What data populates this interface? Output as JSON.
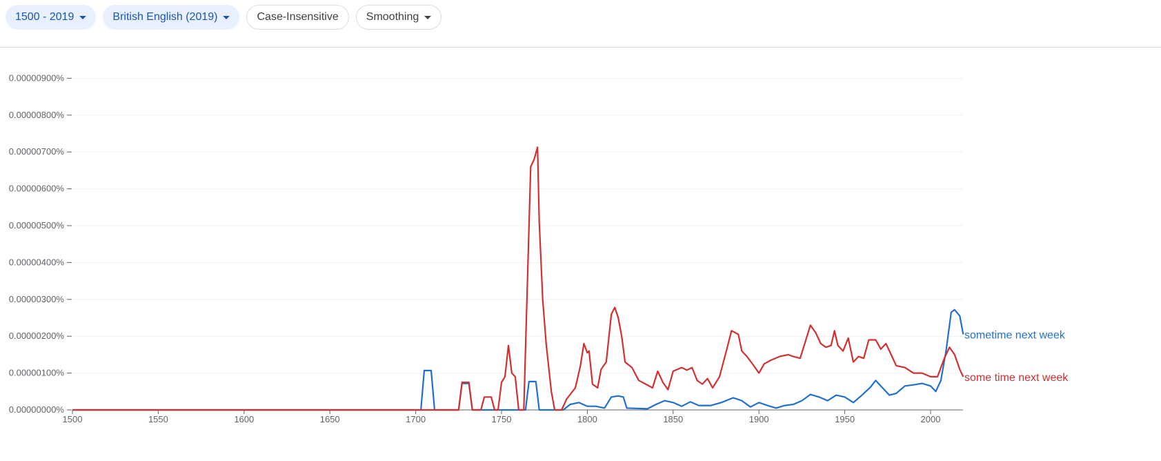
{
  "toolbar": {
    "year_range": "1500 - 2019",
    "corpus": "British English (2019)",
    "case": "Case-Insensitive",
    "smoothing": "Smoothing"
  },
  "chart_data": {
    "type": "line",
    "xlim": [
      1500,
      2019
    ],
    "ylim": [
      0,
      9.5e-06
    ],
    "grid": true,
    "x_ticks": [
      "1500",
      "1550",
      "1600",
      "1650",
      "1700",
      "1750",
      "1800",
      "1850",
      "1900",
      "1950",
      "2000"
    ],
    "y_ticks": [
      "0.00000000%",
      "0.00000100%",
      "0.00000200%",
      "0.00000300%",
      "0.00000400%",
      "0.00000500%",
      "0.00000600%",
      "0.00000700%",
      "0.00000800%",
      "0.00000900%"
    ],
    "y_unit": "percent",
    "series": [
      {
        "name": "sometime next week",
        "color": "#1f6fce",
        "points": [
          [
            1500,
            0
          ],
          [
            1703,
            0
          ],
          [
            1705,
            1.07e-06
          ],
          [
            1709,
            1.07e-06
          ],
          [
            1711,
            0
          ],
          [
            1725,
            0
          ],
          [
            1727,
            7.2e-07
          ],
          [
            1731,
            7.2e-07
          ],
          [
            1733,
            0
          ],
          [
            1764,
            0
          ],
          [
            1766,
            7.7e-07
          ],
          [
            1770,
            7.7e-07
          ],
          [
            1772,
            0
          ],
          [
            1786,
            0
          ],
          [
            1790,
            1.5e-07
          ],
          [
            1795,
            2e-07
          ],
          [
            1800,
            1e-07
          ],
          [
            1805,
            1e-07
          ],
          [
            1810,
            5e-08
          ],
          [
            1814,
            3.5e-07
          ],
          [
            1818,
            3.8e-07
          ],
          [
            1821,
            3.5e-07
          ],
          [
            1823,
            5e-08
          ],
          [
            1835,
            3e-08
          ],
          [
            1840,
            1.5e-07
          ],
          [
            1845,
            2.5e-07
          ],
          [
            1850,
            2e-07
          ],
          [
            1855,
            1e-07
          ],
          [
            1860,
            2.2e-07
          ],
          [
            1865,
            1.2e-07
          ],
          [
            1872,
            1.2e-07
          ],
          [
            1878,
            2e-07
          ],
          [
            1885,
            3.3e-07
          ],
          [
            1890,
            2.5e-07
          ],
          [
            1895,
            8e-08
          ],
          [
            1900,
            2e-07
          ],
          [
            1905,
            1.2e-07
          ],
          [
            1910,
            5e-08
          ],
          [
            1915,
            1.2e-07
          ],
          [
            1920,
            1.5e-07
          ],
          [
            1925,
            2.5e-07
          ],
          [
            1930,
            4.2e-07
          ],
          [
            1935,
            3.5e-07
          ],
          [
            1940,
            2.5e-07
          ],
          [
            1945,
            4e-07
          ],
          [
            1950,
            3.5e-07
          ],
          [
            1955,
            2e-07
          ],
          [
            1960,
            4e-07
          ],
          [
            1965,
            6.2e-07
          ],
          [
            1968,
            8e-07
          ],
          [
            1972,
            6e-07
          ],
          [
            1976,
            4e-07
          ],
          [
            1980,
            4.5e-07
          ],
          [
            1985,
            6.5e-07
          ],
          [
            1990,
            6.8e-07
          ],
          [
            1995,
            7.2e-07
          ],
          [
            2000,
            6.5e-07
          ],
          [
            2003,
            5e-07
          ],
          [
            2006,
            8e-07
          ],
          [
            2009,
            1.6e-06
          ],
          [
            2012,
            2.65e-06
          ],
          [
            2014,
            2.72e-06
          ],
          [
            2017,
            2.55e-06
          ],
          [
            2019,
            2.05e-06
          ]
        ]
      },
      {
        "name": "some time next week",
        "color": "#d32f2f",
        "points": [
          [
            1500,
            0
          ],
          [
            1725,
            0
          ],
          [
            1727,
            7.5e-07
          ],
          [
            1731,
            7.5e-07
          ],
          [
            1733,
            0
          ],
          [
            1738,
            0
          ],
          [
            1740,
            3.5e-07
          ],
          [
            1744,
            3.5e-07
          ],
          [
            1746,
            0
          ],
          [
            1748,
            0
          ],
          [
            1750,
            7.5e-07
          ],
          [
            1752,
            9e-07
          ],
          [
            1754,
            1.75e-06
          ],
          [
            1756,
            1e-06
          ],
          [
            1758,
            9e-07
          ],
          [
            1760,
            0
          ],
          [
            1763,
            0
          ],
          [
            1765,
            3.3e-06
          ],
          [
            1767,
            6.6e-06
          ],
          [
            1769,
            6.8e-06
          ],
          [
            1771,
            7.13e-06
          ],
          [
            1772,
            5.1e-06
          ],
          [
            1774,
            3e-06
          ],
          [
            1776,
            1.8e-06
          ],
          [
            1779,
            5e-07
          ],
          [
            1781,
            0
          ],
          [
            1785,
            0
          ],
          [
            1788,
            3e-07
          ],
          [
            1793,
            6e-07
          ],
          [
            1796,
            1.2e-06
          ],
          [
            1798,
            1.8e-06
          ],
          [
            1800,
            1.55e-06
          ],
          [
            1801,
            1.6e-06
          ],
          [
            1803,
            7e-07
          ],
          [
            1806,
            6e-07
          ],
          [
            1808,
            1.1e-06
          ],
          [
            1811,
            1.3e-06
          ],
          [
            1814,
            2.6e-06
          ],
          [
            1816,
            2.78e-06
          ],
          [
            1818,
            2.5e-06
          ],
          [
            1820,
            2e-06
          ],
          [
            1822,
            1.3e-06
          ],
          [
            1826,
            1.15e-06
          ],
          [
            1830,
            8e-07
          ],
          [
            1834,
            7e-07
          ],
          [
            1838,
            6e-07
          ],
          [
            1841,
            1.05e-06
          ],
          [
            1844,
            7.5e-07
          ],
          [
            1847,
            5.5e-07
          ],
          [
            1850,
            1.05e-06
          ],
          [
            1855,
            1.15e-06
          ],
          [
            1858,
            1.08e-06
          ],
          [
            1861,
            1.15e-06
          ],
          [
            1864,
            8e-07
          ],
          [
            1867,
            7e-07
          ],
          [
            1870,
            8.5e-07
          ],
          [
            1873,
            6e-07
          ],
          [
            1877,
            9e-07
          ],
          [
            1881,
            1.6e-06
          ],
          [
            1884,
            2.15e-06
          ],
          [
            1888,
            2.05e-06
          ],
          [
            1890,
            1.6e-06
          ],
          [
            1893,
            1.45e-06
          ],
          [
            1897,
            1.2e-06
          ],
          [
            1900,
            1e-06
          ],
          [
            1903,
            1.25e-06
          ],
          [
            1907,
            1.35e-06
          ],
          [
            1912,
            1.45e-06
          ],
          [
            1917,
            1.5e-06
          ],
          [
            1920,
            1.45e-06
          ],
          [
            1924,
            1.4e-06
          ],
          [
            1927,
            1.85e-06
          ],
          [
            1930,
            2.3e-06
          ],
          [
            1933,
            2.1e-06
          ],
          [
            1936,
            1.8e-06
          ],
          [
            1939,
            1.7e-06
          ],
          [
            1942,
            1.75e-06
          ],
          [
            1944,
            2.15e-06
          ],
          [
            1946,
            1.75e-06
          ],
          [
            1949,
            1.6e-06
          ],
          [
            1952,
            1.95e-06
          ],
          [
            1955,
            1.3e-06
          ],
          [
            1958,
            1.45e-06
          ],
          [
            1961,
            1.4e-06
          ],
          [
            1964,
            1.9e-06
          ],
          [
            1968,
            1.9e-06
          ],
          [
            1971,
            1.65e-06
          ],
          [
            1974,
            1.8e-06
          ],
          [
            1977,
            1.5e-06
          ],
          [
            1980,
            1.2e-06
          ],
          [
            1985,
            1.15e-06
          ],
          [
            1990,
            1e-06
          ],
          [
            1995,
            1e-06
          ],
          [
            2000,
            9e-07
          ],
          [
            2004,
            9e-07
          ],
          [
            2008,
            1.4e-06
          ],
          [
            2011,
            1.7e-06
          ],
          [
            2014,
            1.5e-06
          ],
          [
            2017,
            1.1e-06
          ],
          [
            2019,
            9e-07
          ]
        ]
      }
    ]
  }
}
